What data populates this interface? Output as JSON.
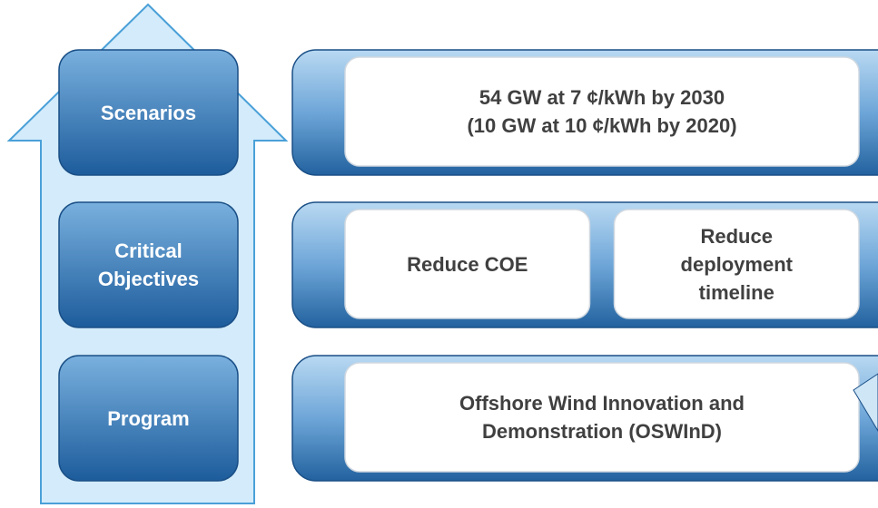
{
  "levels": [
    {
      "label": [
        "Scenarios"
      ],
      "items": [
        [
          "54 GW at 7 ¢/kWh by 2030",
          "(10 GW at 10 ¢/kWh by 2020)"
        ]
      ]
    },
    {
      "label": [
        "Critical",
        "Objectives"
      ],
      "items": [
        [
          "Reduce COE"
        ],
        [
          "Reduce",
          "deployment",
          "timeline"
        ]
      ]
    },
    {
      "label": [
        "Program"
      ],
      "items": [
        [
          "Offshore Wind Innovation and",
          "Demonstration (OSWInD)"
        ]
      ]
    }
  ]
}
